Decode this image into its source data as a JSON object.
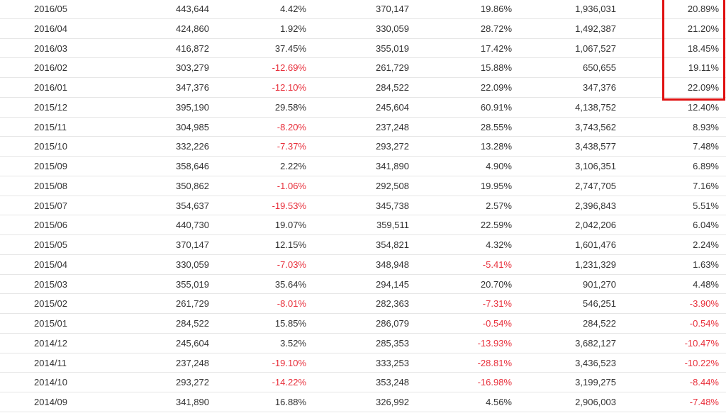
{
  "table": {
    "rows": [
      [
        "2016/05",
        "443,644",
        "4.42%",
        "370,147",
        "19.86%",
        "1,936,031",
        "20.89%"
      ],
      [
        "2016/04",
        "424,860",
        "1.92%",
        "330,059",
        "28.72%",
        "1,492,387",
        "21.20%"
      ],
      [
        "2016/03",
        "416,872",
        "37.45%",
        "355,019",
        "17.42%",
        "1,067,527",
        "18.45%"
      ],
      [
        "2016/02",
        "303,279",
        "-12.69%",
        "261,729",
        "15.88%",
        "650,655",
        "19.11%"
      ],
      [
        "2016/01",
        "347,376",
        "-12.10%",
        "284,522",
        "22.09%",
        "347,376",
        "22.09%"
      ],
      [
        "2015/12",
        "395,190",
        "29.58%",
        "245,604",
        "60.91%",
        "4,138,752",
        "12.40%"
      ],
      [
        "2015/11",
        "304,985",
        "-8.20%",
        "237,248",
        "28.55%",
        "3,743,562",
        "8.93%"
      ],
      [
        "2015/10",
        "332,226",
        "-7.37%",
        "293,272",
        "13.28%",
        "3,438,577",
        "7.48%"
      ],
      [
        "2015/09",
        "358,646",
        "2.22%",
        "341,890",
        "4.90%",
        "3,106,351",
        "6.89%"
      ],
      [
        "2015/08",
        "350,862",
        "-1.06%",
        "292,508",
        "19.95%",
        "2,747,705",
        "7.16%"
      ],
      [
        "2015/07",
        "354,637",
        "-19.53%",
        "345,738",
        "2.57%",
        "2,396,843",
        "5.51%"
      ],
      [
        "2015/06",
        "440,730",
        "19.07%",
        "359,511",
        "22.59%",
        "2,042,206",
        "6.04%"
      ],
      [
        "2015/05",
        "370,147",
        "12.15%",
        "354,821",
        "4.32%",
        "1,601,476",
        "2.24%"
      ],
      [
        "2015/04",
        "330,059",
        "-7.03%",
        "348,948",
        "-5.41%",
        "1,231,329",
        "1.63%"
      ],
      [
        "2015/03",
        "355,019",
        "35.64%",
        "294,145",
        "20.70%",
        "901,270",
        "4.48%"
      ],
      [
        "2015/02",
        "261,729",
        "-8.01%",
        "282,363",
        "-7.31%",
        "546,251",
        "-3.90%"
      ],
      [
        "2015/01",
        "284,522",
        "15.85%",
        "286,079",
        "-0.54%",
        "284,522",
        "-0.54%"
      ],
      [
        "2014/12",
        "245,604",
        "3.52%",
        "285,353",
        "-13.93%",
        "3,682,127",
        "-10.47%"
      ],
      [
        "2014/11",
        "237,248",
        "-19.10%",
        "333,253",
        "-28.81%",
        "3,436,523",
        "-10.22%"
      ],
      [
        "2014/10",
        "293,272",
        "-14.22%",
        "353,248",
        "-16.98%",
        "3,199,275",
        "-8.44%"
      ],
      [
        "2014/09",
        "341,890",
        "16.88%",
        "326,992",
        "4.56%",
        "2,906,003",
        "-7.48%"
      ]
    ]
  }
}
